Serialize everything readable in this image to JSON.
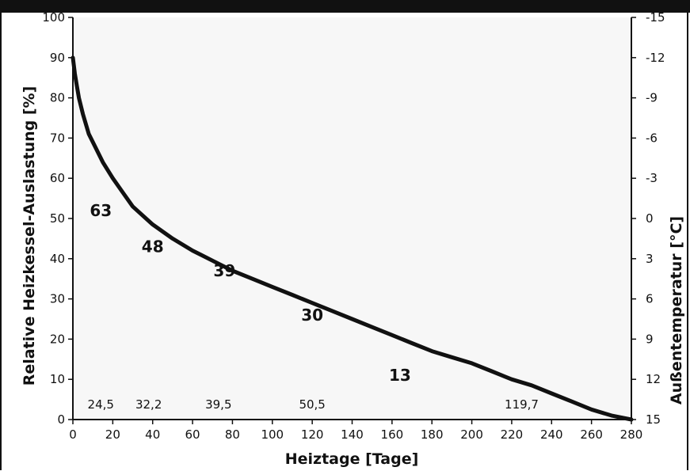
{
  "chart_data": {
    "type": "line",
    "xlabel": "Heiztage [Tage]",
    "ylabel": "Relative Heizkessel-Auslastung [%]",
    "y2label": "Außentemperatur [°C]",
    "xlim": [
      0,
      280
    ],
    "ylim": [
      0,
      100
    ],
    "y2lim": [
      15,
      -15
    ],
    "xticks": [
      "0",
      "20",
      "40",
      "60",
      "80",
      "100",
      "120",
      "140",
      "160",
      "180",
      "200",
      "220",
      "240",
      "260",
      "280"
    ],
    "yticks": [
      "0",
      "10",
      "20",
      "30",
      "40",
      "50",
      "60",
      "70",
      "80",
      "90",
      "100"
    ],
    "y2ticks": [
      "15",
      "12",
      "9",
      "6",
      "3",
      "0",
      "-3",
      "-6",
      "-9",
      "-12",
      "-15"
    ],
    "grid": false,
    "series": [
      {
        "x": [
          0,
          1,
          2,
          3,
          5,
          8,
          10,
          15,
          20,
          25,
          30,
          40,
          50,
          60,
          70,
          80,
          90,
          100,
          110,
          120,
          130,
          140,
          150,
          160,
          170,
          180,
          190,
          200,
          210,
          220,
          230,
          240,
          250,
          260,
          270,
          280
        ],
        "y": [
          90,
          86,
          83,
          80,
          76,
          71,
          69,
          64,
          60,
          56.5,
          53,
          48.5,
          45,
          42,
          39.5,
          37,
          35,
          33,
          31,
          29,
          27,
          25,
          23,
          21,
          19,
          17,
          15.5,
          14,
          12,
          10,
          8.5,
          6.5,
          4.5,
          2.5,
          1,
          0
        ]
      }
    ],
    "annotations": [
      {
        "text": "63",
        "x": 14,
        "y": 52
      },
      {
        "text": "48",
        "x": 40,
        "y": 43
      },
      {
        "text": "39",
        "x": 76,
        "y": 37
      },
      {
        "text": "30",
        "x": 120,
        "y": 26
      },
      {
        "text": "13",
        "x": 164,
        "y": 11
      }
    ],
    "bottom_labels": [
      {
        "text": "24,5",
        "x": 14
      },
      {
        "text": "32,2",
        "x": 38
      },
      {
        "text": "39,5",
        "x": 73
      },
      {
        "text": "50,5",
        "x": 120
      },
      {
        "text": "119,7",
        "x": 225
      }
    ]
  }
}
